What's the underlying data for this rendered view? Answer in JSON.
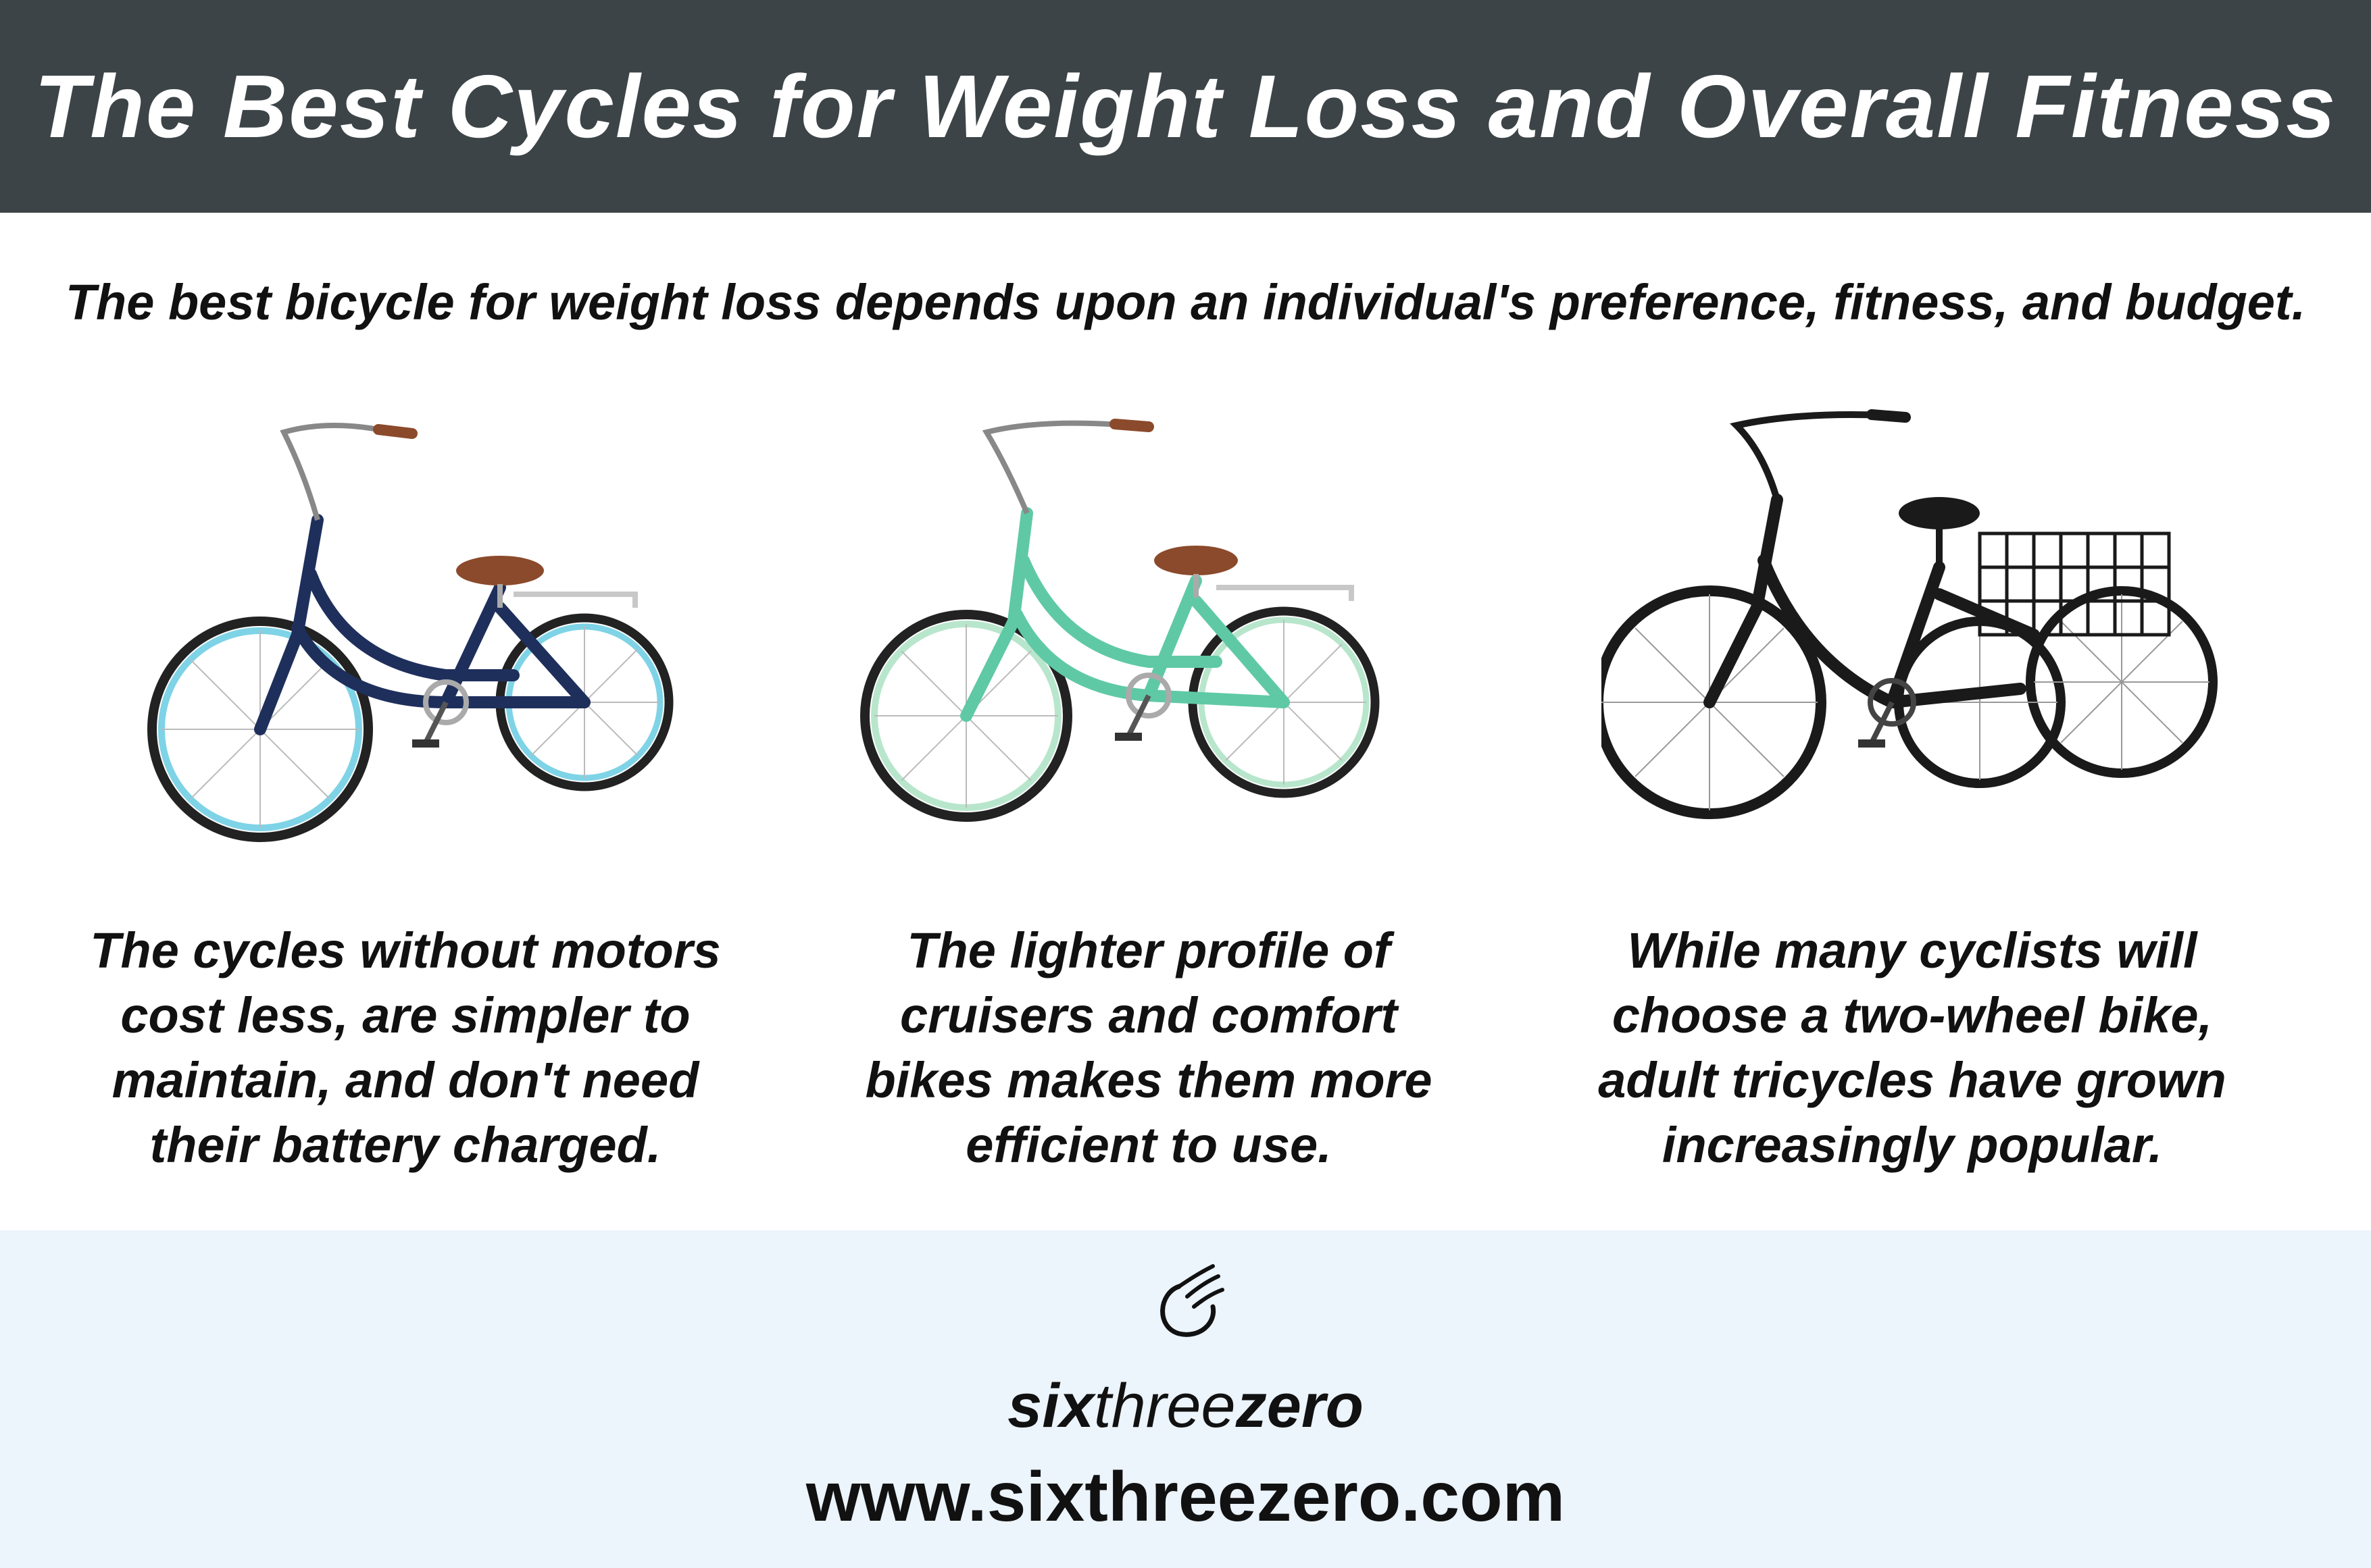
{
  "header": {
    "title": "The Best Cycles for Weight Loss and Overall Fitness"
  },
  "subtitle": "The best bicycle for weight loss depends upon an individual's preference, fitness, and budget.",
  "cards": [
    {
      "image": "navy-step-through-cruiser-bike",
      "frame_color": "#1f2f5c",
      "rim_color": "#7fd3e6",
      "caption_lines": [
        "The cycles without motors",
        "cost less, are simpler to",
        "maintain, and don't need",
        "their battery charged."
      ]
    },
    {
      "image": "mint-step-through-cruiser-bike",
      "frame_color": "#5fc9a6",
      "rim_color": "#b8e6cc",
      "caption_lines": [
        "The lighter profile of",
        "cruisers and comfort",
        "bikes makes them more",
        "efficient to use."
      ]
    },
    {
      "image": "black-adult-tricycle-with-basket",
      "frame_color": "#1a1a1a",
      "rim_color": "#2a2a2a",
      "caption_lines": [
        "While many cyclists will",
        "choose a two-wheel bike,",
        "adult tricycles have grown",
        "increasingly popular."
      ]
    }
  ],
  "footer": {
    "logo_icon": "wing-icon",
    "brand_bold_1": "six",
    "brand_light": "three",
    "brand_bold_2": "zero",
    "url": "www.sixthreezero.com"
  },
  "colors": {
    "header_bg": "#3c4447",
    "footer_bg": "#ecf4fc",
    "saddle": "#8b4a2b"
  }
}
